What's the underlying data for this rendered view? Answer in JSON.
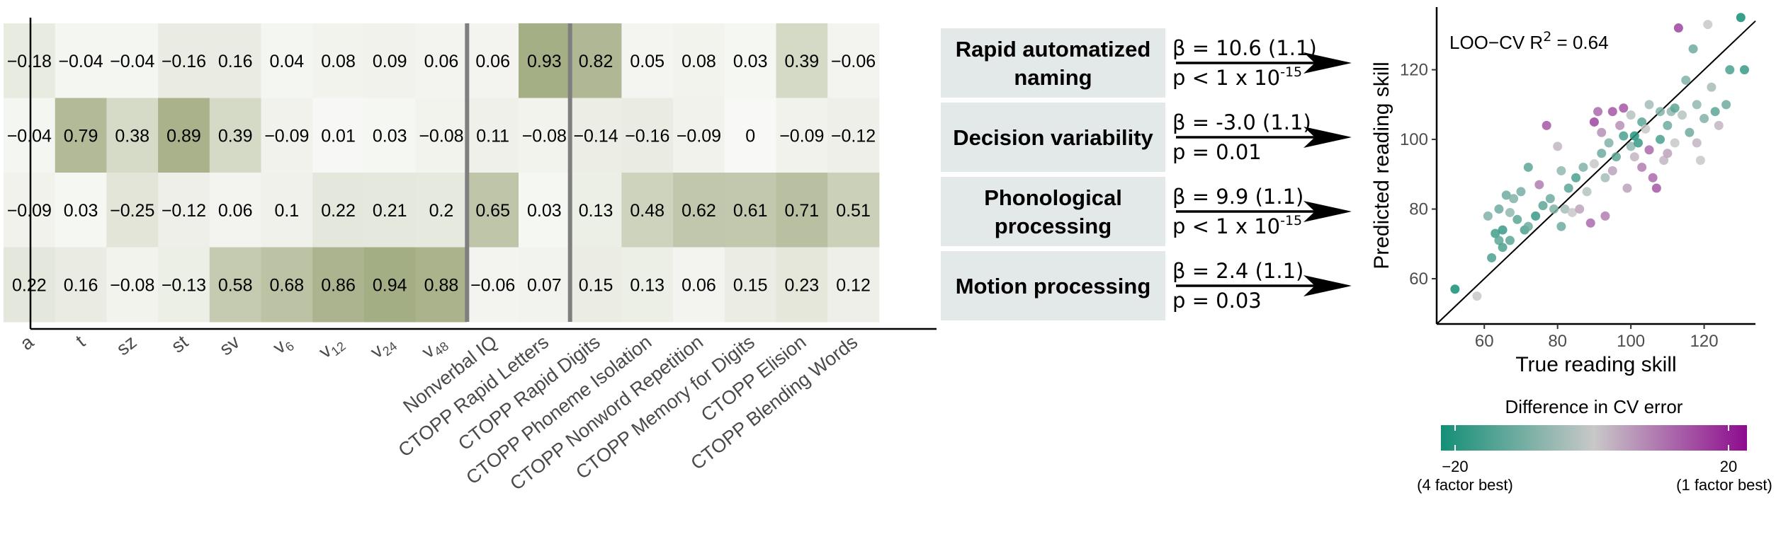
{
  "chart_data": [
    {
      "type": "heatmap",
      "columns": [
        {
          "main": "a",
          "sub": ""
        },
        {
          "main": "t",
          "sub": ""
        },
        {
          "main": "sz",
          "sub": ""
        },
        {
          "main": "st",
          "sub": ""
        },
        {
          "main": "sv",
          "sub": ""
        },
        {
          "main": "v",
          "sub": "6"
        },
        {
          "main": "v",
          "sub": "12"
        },
        {
          "main": "v",
          "sub": "24"
        },
        {
          "main": "v",
          "sub": "48"
        },
        {
          "main": "Nonverbal IQ",
          "sub": ""
        },
        {
          "main": "CTOPP Rapid Letters",
          "sub": ""
        },
        {
          "main": "CTOPP Rapid Digits",
          "sub": ""
        },
        {
          "main": "CTOPP Phoneme Isolation",
          "sub": ""
        },
        {
          "main": "CTOPP Nonword Repetition",
          "sub": ""
        },
        {
          "main": "CTOPP Memory for Digits",
          "sub": ""
        },
        {
          "main": "CTOPP Elision",
          "sub": ""
        },
        {
          "main": "CTOPP Blending Words",
          "sub": ""
        }
      ],
      "rows": [
        {
          "values": [
            -0.18,
            -0.04,
            -0.04,
            -0.16,
            0.16,
            0.04,
            0.08,
            0.09,
            0.06,
            0.06,
            0.93,
            0.82,
            0.05,
            0.08,
            0.03,
            0.39,
            -0.06
          ],
          "labels": [
            "−0.18",
            "−0.04",
            "−0.04",
            "−0.16",
            "0.16",
            "0.04",
            "0.08",
            "0.09",
            "0.06",
            "0.06",
            "0.93",
            "0.82",
            "0.05",
            "0.08",
            "0.03",
            "0.39",
            "−0.06"
          ]
        },
        {
          "values": [
            -0.04,
            0.79,
            0.38,
            0.89,
            0.39,
            -0.09,
            0.01,
            0.03,
            -0.08,
            0.11,
            -0.08,
            -0.14,
            -0.16,
            -0.09,
            0,
            -0.09,
            -0.12
          ],
          "labels": [
            "−0.04",
            "0.79",
            "0.38",
            "0.89",
            "0.39",
            "−0.09",
            "0.01",
            "0.03",
            "−0.08",
            "0.11",
            "−0.08",
            "−0.14",
            "−0.16",
            "−0.09",
            "0",
            "−0.09",
            "−0.12"
          ]
        },
        {
          "values": [
            -0.09,
            0.03,
            -0.25,
            -0.12,
            0.06,
            0.1,
            0.22,
            0.21,
            0.2,
            0.65,
            0.03,
            0.13,
            0.48,
            0.62,
            0.61,
            0.71,
            0.51
          ],
          "labels": [
            "−0.09",
            "0.03",
            "−0.25",
            "−0.12",
            "0.06",
            "0.1",
            "0.22",
            "0.21",
            "0.2",
            "0.65",
            "0.03",
            "0.13",
            "0.48",
            "0.62",
            "0.61",
            "0.71",
            "0.51"
          ]
        },
        {
          "values": [
            0.22,
            0.16,
            -0.08,
            -0.13,
            0.58,
            0.68,
            0.86,
            0.94,
            0.88,
            -0.06,
            0.07,
            0.15,
            0.13,
            0.06,
            0.15,
            0.23,
            0.12
          ],
          "labels": [
            "0.22",
            "0.16",
            "−0.08",
            "−0.13",
            "0.58",
            "0.68",
            "0.86",
            "0.94",
            "0.88",
            "−0.06",
            "0.07",
            "0.15",
            "0.13",
            "0.06",
            "0.15",
            "0.23",
            "0.12"
          ]
        }
      ],
      "highlight_color": "#9fa97e",
      "background_color": "#ffffff"
    },
    {
      "type": "table",
      "factors": [
        {
          "name_lines": [
            "Rapid automatized",
            "naming"
          ],
          "beta": "β = 10.6 (1.1)",
          "p_text": "p < 1 x 10",
          "p_exp": "-15"
        },
        {
          "name_lines": [
            "Decision variability"
          ],
          "beta": "β = -3.0 (1.1)",
          "p_text": "p = 0.01",
          "p_exp": ""
        },
        {
          "name_lines": [
            "Phonological",
            "processing"
          ],
          "beta": "β = 9.9 (1.1)",
          "p_text": "p < 1 x 10",
          "p_exp": "-15"
        },
        {
          "name_lines": [
            "Motion processing"
          ],
          "beta": "β = 2.4 (1.1)",
          "p_text": "p = 0.03",
          "p_exp": ""
        }
      ],
      "box_color": "#e3e8e9"
    },
    {
      "type": "scatter",
      "xlabel": "True reading skill",
      "ylabel": "Predicted reading skill",
      "xlim": [
        47,
        134
      ],
      "ylim": [
        47,
        138
      ],
      "xticks": [
        60,
        80,
        100,
        120
      ],
      "yticks": [
        60,
        80,
        100,
        120
      ],
      "annotation_text": "LOO−CV R",
      "annotation_sup": "2",
      "annotation_value": " = 0.64",
      "identity_line": true,
      "color_scale": {
        "title": "Difference in CV error",
        "min_label": "−20",
        "max_label": "20",
        "min_caption": "(4 factor best)",
        "max_caption": "(1 factor best)",
        "low_color": "#148f77",
        "mid_color": "#c8c8c8",
        "high_color": "#8e0b8e"
      },
      "points": [
        {
          "x": 52,
          "y": 57,
          "c": -20
        },
        {
          "x": 58,
          "y": 55,
          "c": 0
        },
        {
          "x": 61,
          "y": 78,
          "c": -8
        },
        {
          "x": 62,
          "y": 66,
          "c": -14
        },
        {
          "x": 63,
          "y": 73,
          "c": -15
        },
        {
          "x": 64,
          "y": 71,
          "c": -12
        },
        {
          "x": 64,
          "y": 80,
          "c": -10
        },
        {
          "x": 65,
          "y": 69,
          "c": -14
        },
        {
          "x": 65,
          "y": 74,
          "c": -16
        },
        {
          "x": 66,
          "y": 84,
          "c": -10
        },
        {
          "x": 67,
          "y": 71,
          "c": -12
        },
        {
          "x": 67,
          "y": 79,
          "c": -6
        },
        {
          "x": 68,
          "y": 83,
          "c": -8
        },
        {
          "x": 69,
          "y": 77,
          "c": -12
        },
        {
          "x": 70,
          "y": 85,
          "c": -9
        },
        {
          "x": 71,
          "y": 74,
          "c": -14
        },
        {
          "x": 72,
          "y": 75,
          "c": -10
        },
        {
          "x": 72,
          "y": 92,
          "c": -12
        },
        {
          "x": 74,
          "y": 78,
          "c": -16
        },
        {
          "x": 75,
          "y": 87,
          "c": 8
        },
        {
          "x": 76,
          "y": 81,
          "c": -12
        },
        {
          "x": 77,
          "y": 104,
          "c": 12
        },
        {
          "x": 78,
          "y": 83,
          "c": -10
        },
        {
          "x": 79,
          "y": 80,
          "c": -8
        },
        {
          "x": 80,
          "y": 98,
          "c": 2
        },
        {
          "x": 81,
          "y": 91,
          "c": -6
        },
        {
          "x": 81,
          "y": 75,
          "c": -10
        },
        {
          "x": 82,
          "y": 80,
          "c": -4
        },
        {
          "x": 83,
          "y": 86,
          "c": -12
        },
        {
          "x": 84,
          "y": 79,
          "c": 0
        },
        {
          "x": 85,
          "y": 89,
          "c": -14
        },
        {
          "x": 86,
          "y": 80,
          "c": 4
        },
        {
          "x": 87,
          "y": 92,
          "c": -8
        },
        {
          "x": 88,
          "y": 85,
          "c": -2
        },
        {
          "x": 89,
          "y": 76,
          "c": 10
        },
        {
          "x": 90,
          "y": 93,
          "c": 0
        },
        {
          "x": 90,
          "y": 105,
          "c": 14
        },
        {
          "x": 91,
          "y": 108,
          "c": 10
        },
        {
          "x": 92,
          "y": 96,
          "c": -10
        },
        {
          "x": 92,
          "y": 102,
          "c": 6
        },
        {
          "x": 93,
          "y": 89,
          "c": -4
        },
        {
          "x": 93,
          "y": 78,
          "c": 8
        },
        {
          "x": 94,
          "y": 99,
          "c": -8
        },
        {
          "x": 95,
          "y": 108,
          "c": 12
        },
        {
          "x": 95,
          "y": 91,
          "c": 4
        },
        {
          "x": 96,
          "y": 95,
          "c": -12
        },
        {
          "x": 97,
          "y": 104,
          "c": 6
        },
        {
          "x": 98,
          "y": 101,
          "c": -14
        },
        {
          "x": 98,
          "y": 109,
          "c": 12
        },
        {
          "x": 99,
          "y": 86,
          "c": 4
        },
        {
          "x": 100,
          "y": 98,
          "c": -6
        },
        {
          "x": 100,
          "y": 107,
          "c": -2
        },
        {
          "x": 101,
          "y": 95,
          "c": 2
        },
        {
          "x": 101,
          "y": 101,
          "c": -18
        },
        {
          "x": 102,
          "y": 99,
          "c": -16
        },
        {
          "x": 103,
          "y": 105,
          "c": -12
        },
        {
          "x": 103,
          "y": 92,
          "c": 8
        },
        {
          "x": 104,
          "y": 103,
          "c": 0
        },
        {
          "x": 105,
          "y": 97,
          "c": 10
        },
        {
          "x": 105,
          "y": 110,
          "c": -4
        },
        {
          "x": 106,
          "y": 89,
          "c": 10
        },
        {
          "x": 107,
          "y": 86,
          "c": 12
        },
        {
          "x": 108,
          "y": 100,
          "c": -14
        },
        {
          "x": 108,
          "y": 108,
          "c": -8
        },
        {
          "x": 109,
          "y": 94,
          "c": 2
        },
        {
          "x": 110,
          "y": 104,
          "c": -10
        },
        {
          "x": 110,
          "y": 96,
          "c": 4
        },
        {
          "x": 111,
          "y": 108,
          "c": -6
        },
        {
          "x": 112,
          "y": 109,
          "c": -12
        },
        {
          "x": 112,
          "y": 99,
          "c": 0
        },
        {
          "x": 113,
          "y": 132,
          "c": 14
        },
        {
          "x": 114,
          "y": 107,
          "c": -2
        },
        {
          "x": 115,
          "y": 117,
          "c": -8
        },
        {
          "x": 116,
          "y": 102,
          "c": -10
        },
        {
          "x": 117,
          "y": 126,
          "c": -10
        },
        {
          "x": 118,
          "y": 110,
          "c": -6
        },
        {
          "x": 118,
          "y": 99,
          "c": 2
        },
        {
          "x": 119,
          "y": 94,
          "c": 0
        },
        {
          "x": 120,
          "y": 106,
          "c": -8
        },
        {
          "x": 121,
          "y": 133,
          "c": 0
        },
        {
          "x": 122,
          "y": 115,
          "c": -4
        },
        {
          "x": 123,
          "y": 108,
          "c": -12
        },
        {
          "x": 124,
          "y": 104,
          "c": 2
        },
        {
          "x": 126,
          "y": 110,
          "c": -10
        },
        {
          "x": 127,
          "y": 120,
          "c": -14
        },
        {
          "x": 130,
          "y": 135,
          "c": -20
        },
        {
          "x": 131,
          "y": 120,
          "c": -16
        }
      ]
    }
  ]
}
